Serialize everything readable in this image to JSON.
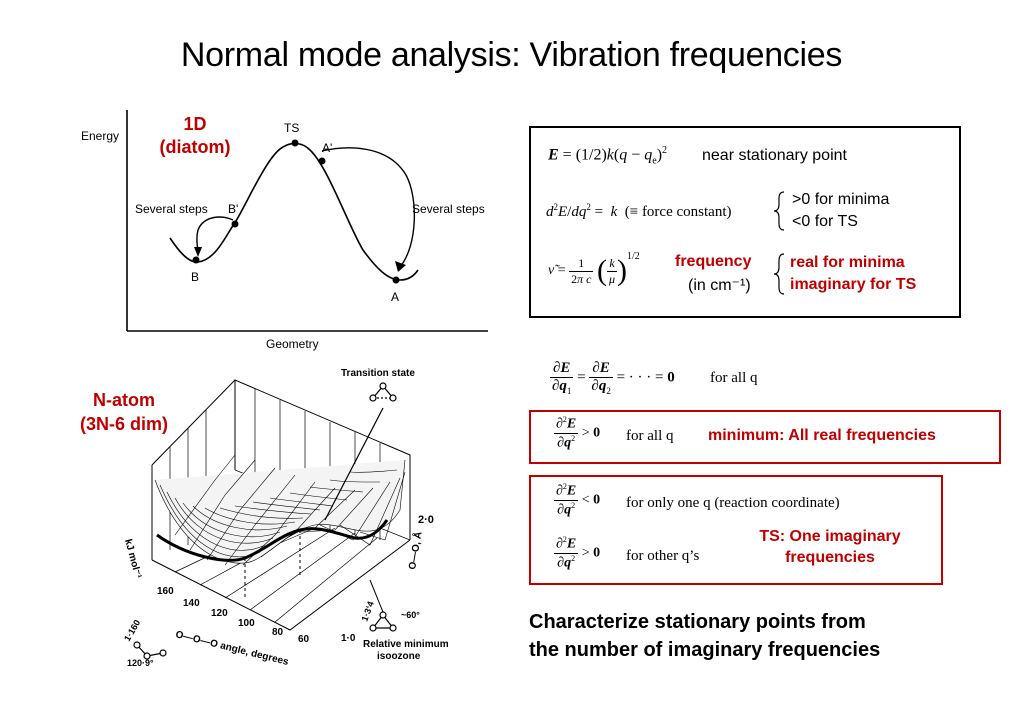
{
  "title": "Normal mode analysis: Vibration frequencies",
  "diagram1d": {
    "label_line1": "1D",
    "label_line2": "(diatom)",
    "y_axis": "Energy",
    "x_axis": "Geometry",
    "ts": "TS",
    "a_prime": "A'",
    "b_prime": "B'",
    "b": "B",
    "a": "A",
    "steps_left": "Several steps",
    "steps_right": "Several steps"
  },
  "diagramN": {
    "label_line1": "N-atom",
    "label_line2": "(3N-6 dim)",
    "transition_state": "Transition state",
    "z_axis": "kJ mol⁻¹",
    "z_tick": "2·0",
    "oa_axis": "O—O, Å",
    "tick_160": "160",
    "tick_140": "140",
    "tick_120": "120",
    "tick_100": "100",
    "tick_80": "80",
    "tick_60": "60",
    "tick_1_0": "1·0",
    "angle_axis": "O—O—O angle, degrees",
    "bond_len": "1·160",
    "bond_angle": "120·9°",
    "rel_bond": "1·3‘4",
    "rel_angle": "~60°",
    "relative_min_line1": "Relative minimum",
    "relative_min_line2": "isoozone"
  },
  "eqbox": {
    "e_label": "near stationary point",
    "fc_gt": ">0 for minima",
    "fc_lt": "<0 for TS",
    "freq": "frequency",
    "freq_unit": "(in cm⁻¹)",
    "real": "real for minima",
    "imag": "imaginary for TS"
  },
  "stationary": {
    "for_all": "for all q"
  },
  "minimum": {
    "for_all": "for all q",
    "note": "minimum: All real frequencies"
  },
  "ts": {
    "only_one": "for only one q (reaction coordinate)",
    "others": "for other q’s",
    "note_line1": "TS: One imaginary",
    "note_line2": "frequencies"
  },
  "conclusion": {
    "line1": "Characterize stationary points from",
    "line2": "the number of imaginary frequencies"
  }
}
